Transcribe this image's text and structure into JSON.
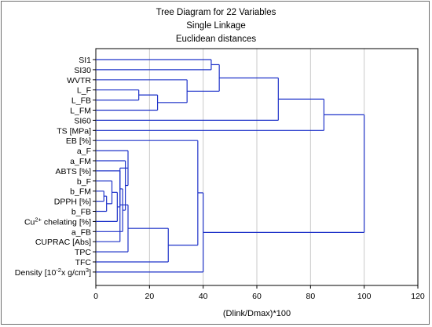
{
  "chart_data": {
    "type": "dendrogram",
    "title": "Tree Diagram for 22 Variables",
    "subtitle_lines": [
      "Single Linkage",
      "Euclidean distances"
    ],
    "xlabel": "(Dlink/Dmax)*100",
    "xlim": [
      0,
      120
    ],
    "xticks": [
      "0",
      "20",
      "40",
      "60",
      "80",
      "100",
      "120"
    ],
    "grid": "vertical",
    "line_color": "#1f33c9",
    "leaves": [
      {
        "label": "SI1"
      },
      {
        "label": "SI30"
      },
      {
        "label": "WVTR"
      },
      {
        "label": "L_F"
      },
      {
        "label": "L_FB"
      },
      {
        "label": "L_FM"
      },
      {
        "label": "SI60"
      },
      {
        "label": "TS [MPa]"
      },
      {
        "label": "EB [%]"
      },
      {
        "label": "a_F"
      },
      {
        "label": "a_FM"
      },
      {
        "label": "ABTS [%]"
      },
      {
        "label": "b_F"
      },
      {
        "label": "b_FM"
      },
      {
        "label": "DPPH [%]"
      },
      {
        "label": "b_FB"
      },
      {
        "label": "Cu chelating [%]",
        "base": "Cu",
        "sup": "2+",
        "rest": " chelating [%]"
      },
      {
        "label": "a_FB"
      },
      {
        "label": "CUPRAC [Abs]"
      },
      {
        "label": "TPC"
      },
      {
        "label": "TFC"
      },
      {
        "label": "Density [10x g/cm]",
        "base": "Density [10",
        "sup": "-2",
        "mid": "x g/cm",
        "sup2": "3",
        "rest": "]"
      }
    ],
    "merges": [
      {
        "left": 0,
        "right": 1,
        "height": 43
      },
      {
        "left": 3,
        "right": 4,
        "height": 16
      },
      {
        "left": 23,
        "right": 5,
        "height": 23
      },
      {
        "left": 2,
        "right": 24,
        "height": 34
      },
      {
        "left": 22,
        "right": 25,
        "height": 46
      },
      {
        "left": 26,
        "right": 6,
        "height": 68
      },
      {
        "left": 27,
        "right": 7,
        "height": 85
      },
      {
        "left": 13,
        "right": 14,
        "height": 3
      },
      {
        "left": 29,
        "right": 15,
        "height": 4
      },
      {
        "left": 12,
        "right": 30,
        "height": 6
      },
      {
        "left": 31,
        "right": 16,
        "height": 8
      },
      {
        "left": 11,
        "right": 32,
        "height": 9
      },
      {
        "left": 33,
        "right": 17,
        "height": 10
      },
      {
        "left": 10,
        "right": 34,
        "height": 11
      },
      {
        "left": 9,
        "right": 35,
        "height": 12
      },
      {
        "left": 36,
        "right": 18,
        "height": 9
      },
      {
        "left": 37,
        "right": 19,
        "height": 12
      },
      {
        "left": 38,
        "right": 20,
        "height": 27
      },
      {
        "left": 8,
        "right": 39,
        "height": 38
      },
      {
        "left": 40,
        "right": 21,
        "height": 40
      },
      {
        "left": 28,
        "right": 41,
        "height": 100
      }
    ]
  }
}
